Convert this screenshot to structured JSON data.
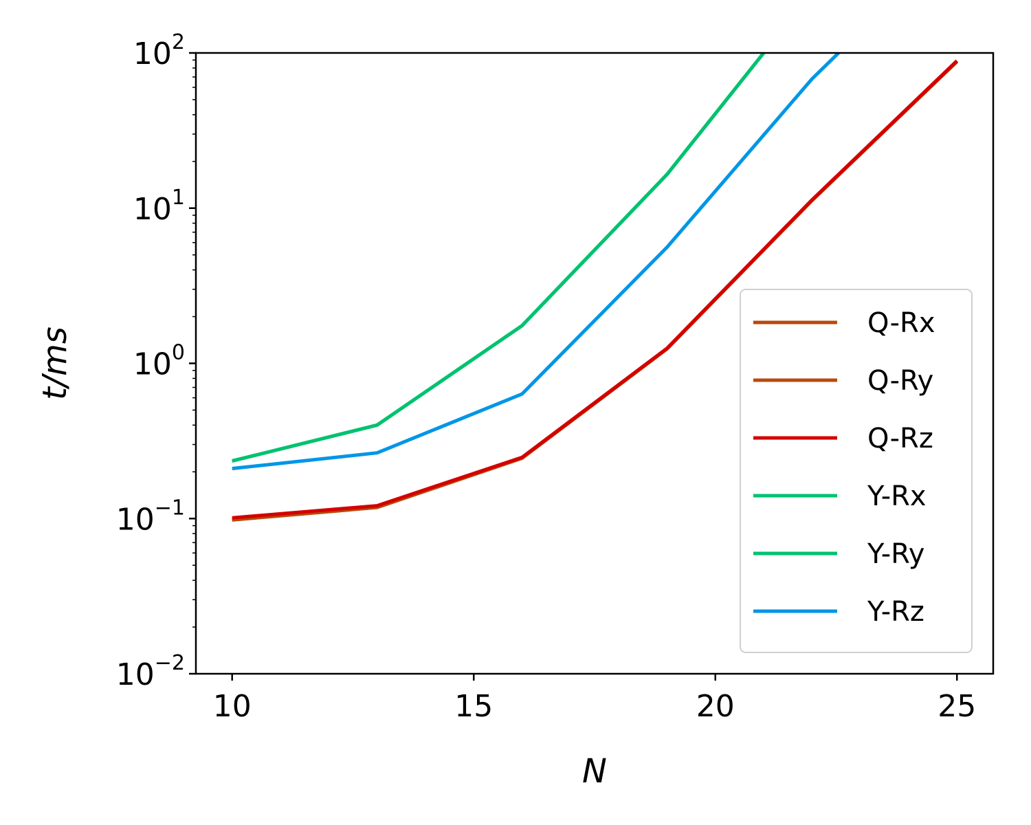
{
  "chart_data": {
    "type": "line",
    "title": "",
    "xlabel": "N",
    "ylabel": "t/ms",
    "xlim": [
      9.25,
      25.75
    ],
    "ylim": [
      0.01,
      100
    ],
    "yscale": "log",
    "grid": false,
    "legend_position": "lower-right",
    "x_ticks": [
      10,
      15,
      20,
      25
    ],
    "x_tick_labels": [
      "10",
      "15",
      "20",
      "25"
    ],
    "y_ticks": [
      0.01,
      0.1,
      1,
      10,
      100
    ],
    "y_tick_labels": [
      {
        "base": "10",
        "exp": "−2"
      },
      {
        "base": "10",
        "exp": "−1"
      },
      {
        "base": "10",
        "exp": "0"
      },
      {
        "base": "10",
        "exp": "1"
      },
      {
        "base": "10",
        "exp": "2"
      }
    ],
    "series": [
      {
        "name": "Q-Rx",
        "color": "#b84a0c",
        "x": [
          10,
          13,
          16,
          19,
          22,
          25
        ],
        "y": [
          0.098,
          0.118,
          0.245,
          1.24,
          11.2,
          88
        ]
      },
      {
        "name": "Q-Ry",
        "color": "#b84a0c",
        "x": [
          10,
          13,
          16,
          19,
          22,
          25
        ],
        "y": [
          0.098,
          0.118,
          0.245,
          1.24,
          11.2,
          88
        ]
      },
      {
        "name": "Q-Rz",
        "color": "#d40000",
        "x": [
          10,
          13,
          16,
          19,
          22,
          25
        ],
        "y": [
          0.101,
          0.121,
          0.248,
          1.25,
          11.3,
          89
        ]
      },
      {
        "name": "Y-Rx",
        "color": "#00c26f",
        "x": [
          10,
          13,
          16,
          19,
          21
        ],
        "y": [
          0.235,
          0.4,
          1.75,
          16.5,
          100
        ]
      },
      {
        "name": "Y-Ry",
        "color": "#00c26f",
        "x": [
          10,
          13,
          16,
          19,
          21
        ],
        "y": [
          0.235,
          0.4,
          1.75,
          16.5,
          100
        ]
      },
      {
        "name": "Y-Rz",
        "color": "#0096e6",
        "x": [
          10,
          13,
          16,
          19,
          22,
          22.55
        ],
        "y": [
          0.21,
          0.265,
          0.635,
          5.6,
          68,
          100
        ]
      }
    ]
  }
}
